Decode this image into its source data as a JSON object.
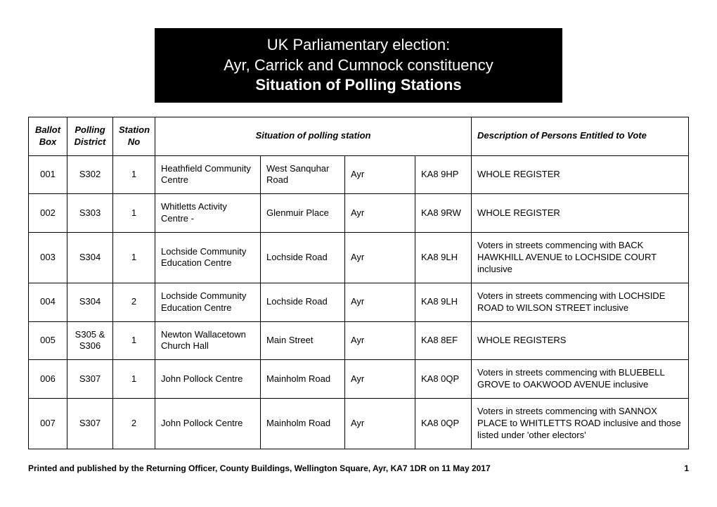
{
  "header": {
    "line1": "UK Parliamentary election:",
    "line2": "Ayr, Carrick and Cumnock constituency",
    "line3": "Situation of Polling Stations"
  },
  "columns": {
    "ballot": "Ballot Box",
    "district": "Polling District",
    "station": "Station No",
    "situation": "Situation of polling station",
    "description": "Description of Persons Entitled to Vote"
  },
  "rows": [
    {
      "ballot": "001",
      "district": "S302",
      "station": "1",
      "venue": "Heathfield Community Centre",
      "road": "West Sanquhar Road",
      "town": "Ayr",
      "postcode": "KA8 9HP",
      "desc": "WHOLE REGISTER"
    },
    {
      "ballot": "002",
      "district": "S303",
      "station": "1",
      "venue": "Whitletts Activity Centre -",
      "road": "Glenmuir Place",
      "town": "Ayr",
      "postcode": "KA8 9RW",
      "desc": "WHOLE REGISTER"
    },
    {
      "ballot": "003",
      "district": "S304",
      "station": "1",
      "venue": "Lochside Community Education Centre",
      "road": "Lochside Road",
      "town": "Ayr",
      "postcode": "KA8 9LH",
      "desc": "Voters in streets commencing with BACK HAWKHILL AVENUE to LOCHSIDE COURT inclusive"
    },
    {
      "ballot": "004",
      "district": "S304",
      "station": "2",
      "venue": "Lochside Community Education Centre",
      "road": "Lochside Road",
      "town": "Ayr",
      "postcode": "KA8 9LH",
      "desc": "Voters in streets commencing with LOCHSIDE ROAD to WILSON STREET inclusive"
    },
    {
      "ballot": "005",
      "district": "S305 & S306",
      "station": "1",
      "venue": "Newton Wallacetown Church Hall",
      "road": "Main Street",
      "town": "Ayr",
      "postcode": "KA8 8EF",
      "desc": "WHOLE REGISTERS"
    },
    {
      "ballot": "006",
      "district": "S307",
      "station": "1",
      "venue": "John Pollock Centre",
      "road": "Mainholm Road",
      "town": "Ayr",
      "postcode": "KA8 0QP",
      "desc": "Voters in streets commencing with BLUEBELL GROVE to OAKWOOD AVENUE inclusive"
    },
    {
      "ballot": "007",
      "district": "S307",
      "station": "2",
      "venue": "John Pollock Centre",
      "road": "Mainholm Road",
      "town": "Ayr",
      "postcode": "KA8 0QP",
      "desc": "Voters in streets commencing with SANNOX PLACE to WHITLETTS ROAD inclusive and those listed under 'other electors'"
    }
  ],
  "footer": {
    "text": "Printed and published by the Returning Officer, County Buildings, Wellington Square, Ayr, KA7 1DR on 11 May 2017",
    "page": "1"
  }
}
